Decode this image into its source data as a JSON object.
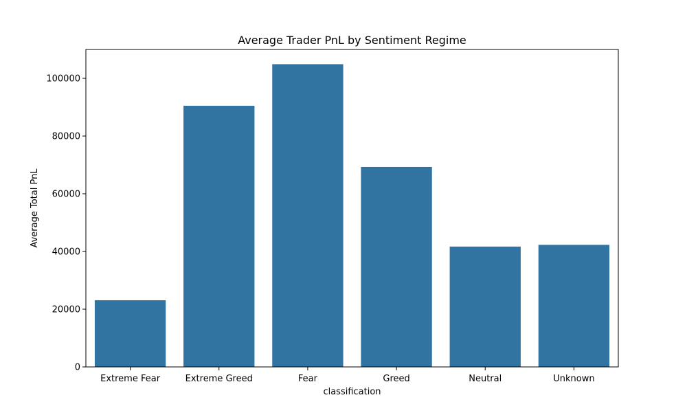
{
  "chart_data": {
    "type": "bar",
    "title": "Average Trader PnL by Sentiment Regime",
    "xlabel": "classification",
    "ylabel": "Average Total PnL",
    "categories": [
      "Extreme Fear",
      "Extreme Greed",
      "Fear",
      "Greed",
      "Neutral",
      "Unknown"
    ],
    "values": [
      23100,
      90500,
      104900,
      69300,
      41700,
      42300
    ],
    "ylim": [
      0,
      110000
    ],
    "yticks": [
      0,
      20000,
      40000,
      60000,
      80000,
      100000
    ],
    "ytick_labels": [
      "0",
      "20000",
      "40000",
      "60000",
      "80000",
      "100000"
    ],
    "grid": false,
    "colors": {
      "bar": "#3274a1",
      "axes": "#000000",
      "background": "#ffffff"
    }
  }
}
